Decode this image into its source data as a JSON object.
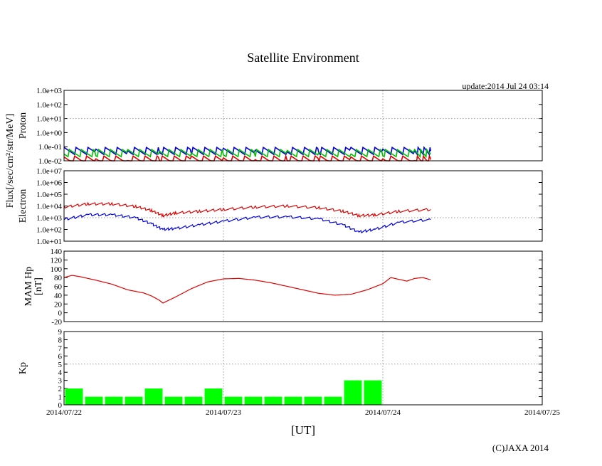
{
  "title": "Satellite Environment",
  "update": "update:2014 Jul 24 03:14",
  "copyright": "(C)JAXA 2014",
  "xlabel": "[UT]",
  "flux_label": "Flux[/sec/cm²/str/MeV]",
  "x_ticks": [
    "2014/07/22",
    "2014/07/23",
    "2014/07/24",
    "2014/07/25"
  ],
  "colors": {
    "red": "#e00000",
    "blue": "#0000e0",
    "green": "#00c000",
    "kp_bar": "#00ff00"
  },
  "chart_data": [
    {
      "type": "line",
      "ylabel": "Proton",
      "yscale": "log",
      "ylim": [
        0.01,
        1000
      ],
      "yticks": [
        "1.0e-02",
        "1.0e-01",
        "1.0e+00",
        "1.0e+01",
        "1.0e+02",
        "1.0e+03"
      ],
      "xlim_days": [
        0,
        3
      ],
      "series": [
        {
          "color": "blue",
          "x_days": [
            0.0,
            0.2,
            0.4,
            0.6,
            0.8,
            1.0,
            1.2,
            1.4,
            1.6,
            1.8,
            2.0,
            2.2,
            2.3
          ],
          "values": [
            0.05,
            0.05,
            0.05,
            0.05,
            0.05,
            0.05,
            0.05,
            0.05,
            0.05,
            0.05,
            0.05,
            0.05,
            0.05
          ]
        },
        {
          "color": "green",
          "x_days": [
            0.0,
            0.2,
            0.4,
            0.6,
            0.8,
            1.0,
            1.2,
            1.4,
            1.6,
            1.8,
            2.0,
            2.2,
            2.3
          ],
          "values": [
            0.035,
            0.035,
            0.035,
            0.035,
            0.035,
            0.035,
            0.035,
            0.035,
            0.035,
            0.035,
            0.035,
            0.035,
            0.035
          ]
        },
        {
          "color": "red",
          "x_days": [
            0.0,
            0.2,
            0.4,
            0.6,
            0.8,
            1.0,
            1.2,
            1.4,
            1.6,
            1.8,
            2.0,
            2.2,
            2.3
          ],
          "values": [
            0.012,
            0.012,
            0.012,
            0.012,
            0.012,
            0.012,
            0.012,
            0.012,
            0.012,
            0.012,
            0.012,
            0.012,
            0.012
          ]
        }
      ]
    },
    {
      "type": "line",
      "ylabel": "Electron",
      "yscale": "log",
      "ylim": [
        10,
        10000000
      ],
      "yticks": [
        "1.0e+01",
        "1.0e+02",
        "1.0e+03",
        "1.0e+04",
        "1.0e+05",
        "1.0e+06",
        "1.0e+07"
      ],
      "xlim_days": [
        0,
        3
      ],
      "series": [
        {
          "color": "red",
          "x_days": [
            0.0,
            0.15,
            0.3,
            0.45,
            0.55,
            0.62,
            0.7,
            0.85,
            1.0,
            1.2,
            1.4,
            1.6,
            1.75,
            1.85,
            1.95,
            2.1,
            2.3
          ],
          "values": [
            8000,
            15000,
            15000,
            9000,
            4000,
            1500,
            2500,
            3500,
            5000,
            8000,
            10000,
            7000,
            3500,
            1500,
            1700,
            3500,
            5000
          ]
        },
        {
          "color": "blue",
          "x_days": [
            0.0,
            0.15,
            0.3,
            0.45,
            0.55,
            0.62,
            0.7,
            0.85,
            1.0,
            1.2,
            1.4,
            1.6,
            1.75,
            1.85,
            1.95,
            2.1,
            2.3
          ],
          "values": [
            700,
            1800,
            1800,
            1000,
            300,
            100,
            120,
            250,
            500,
            1100,
            1200,
            800,
            250,
            60,
            100,
            400,
            700
          ]
        }
      ]
    },
    {
      "type": "line",
      "ylabel": "MAM Hp",
      "ylabel2": "[nT]",
      "ylim": [
        -20,
        140
      ],
      "yticks": [
        "-20",
        "0",
        "20",
        "40",
        "60",
        "80",
        "100",
        "120",
        "140"
      ],
      "xlim_days": [
        0,
        3
      ],
      "series": [
        {
          "color": "red",
          "x_days": [
            0.0,
            0.05,
            0.1,
            0.2,
            0.3,
            0.4,
            0.5,
            0.55,
            0.6,
            0.62,
            0.7,
            0.8,
            0.9,
            1.0,
            1.1,
            1.2,
            1.3,
            1.4,
            1.5,
            1.6,
            1.7,
            1.8,
            1.9,
            2.0,
            2.05,
            2.1,
            2.15,
            2.2,
            2.25,
            2.3
          ],
          "values": [
            80,
            85,
            82,
            74,
            65,
            52,
            45,
            38,
            28,
            22,
            36,
            55,
            70,
            77,
            78,
            74,
            68,
            60,
            52,
            44,
            40,
            42,
            52,
            66,
            80,
            76,
            72,
            78,
            80,
            75
          ]
        }
      ]
    },
    {
      "type": "bar",
      "ylabel": "Kp",
      "ylim": [
        0,
        9
      ],
      "yticks": [
        "0",
        "1",
        "2",
        "3",
        "4",
        "5",
        "6",
        "7",
        "8",
        "9"
      ],
      "xlim_days": [
        0,
        3
      ],
      "bin_days": 0.125,
      "values": [
        2,
        1,
        1,
        1,
        2,
        1,
        1,
        2,
        1,
        1,
        1,
        1,
        1,
        1,
        3,
        3
      ]
    }
  ]
}
